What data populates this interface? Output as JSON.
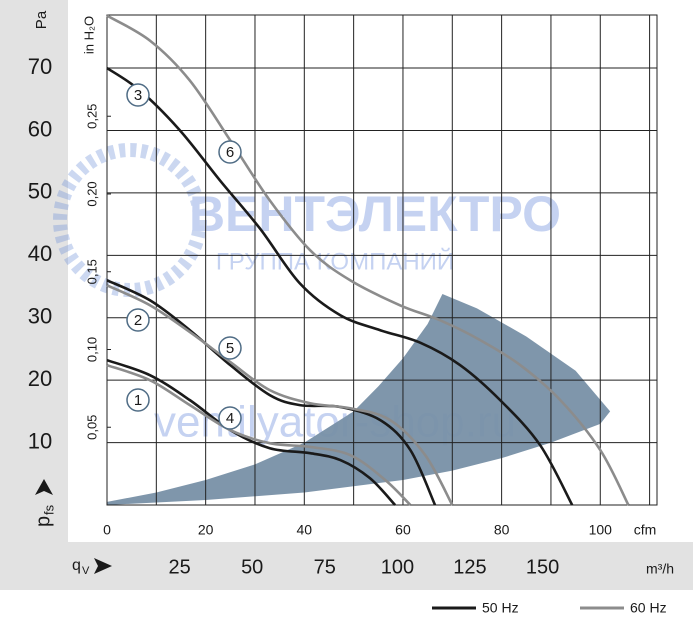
{
  "chart_data": {
    "type": "line",
    "y_axis_unit": "Pa",
    "y2_axis_unit": "in H₂O",
    "x_axis_unit": "cfm",
    "x2_axis_unit": "m³/h",
    "y_symbol": {
      "main": "p",
      "sub": "fs"
    },
    "x_symbol": {
      "main": "q",
      "sub": "V"
    },
    "xlim": [
      0,
      111.5
    ],
    "xticks": [
      0,
      20,
      40,
      60,
      80,
      100
    ],
    "xminor": [
      10,
      30,
      50,
      70,
      90,
      110
    ],
    "ylim": [
      0,
      78.5
    ],
    "yticks": [
      10,
      20,
      30,
      40,
      50,
      60,
      70
    ],
    "y2lim": [
      0,
      0.3151
    ],
    "y2ticks": [
      {
        "value": 0.05,
        "label": "0,05"
      },
      {
        "value": 0.1,
        "label": "0,10"
      },
      {
        "value": 0.15,
        "label": "0,15"
      },
      {
        "value": 0.2,
        "label": "0,20"
      },
      {
        "value": 0.25,
        "label": "0,25"
      }
    ],
    "x2lim": [
      0,
      189.4
    ],
    "x2ticks": [
      25,
      50,
      75,
      100,
      125,
      150
    ],
    "grid": true,
    "legend": [
      {
        "label": "50 Hz",
        "color": "#1a1a1a"
      },
      {
        "label": "60 Hz",
        "color": "#8c8c8c"
      }
    ],
    "region": {
      "color": "#7890a6",
      "x": [
        0,
        10,
        20,
        30,
        40,
        50,
        55,
        60,
        65,
        68,
        75,
        85,
        95,
        102,
        100,
        90,
        80,
        70,
        60,
        40,
        20,
        0
      ],
      "values": [
        0.5,
        2,
        4,
        6.5,
        10,
        15,
        19,
        23.5,
        29,
        33.8,
        31.5,
        27,
        21.5,
        15,
        13,
        10,
        7.5,
        5.5,
        4,
        2,
        0.8,
        0
      ]
    },
    "series": [
      {
        "name": "1",
        "color": "#1a1a1a",
        "x": [
          0,
          8.7,
          16.8,
          25,
          33,
          41.2,
          47.3,
          53.3,
          58.4
        ],
        "values": [
          23.2,
          20.8,
          16.8,
          12,
          9.1,
          8.3,
          7.2,
          4.3,
          0
        ]
      },
      {
        "name": "2",
        "color": "#1a1a1a",
        "x": [
          0,
          8.7,
          16.8,
          25,
          33,
          39.1,
          47.3,
          55.4,
          61.5,
          66.5
        ],
        "values": [
          36,
          32.8,
          28,
          22.4,
          17.6,
          16,
          15.7,
          13.6,
          8.8,
          0
        ]
      },
      {
        "name": "3",
        "color": "#1a1a1a",
        "x": [
          0,
          6.7,
          14.8,
          22.9,
          31,
          39.1,
          47.3,
          55.4,
          63.5,
          71.6,
          79.7,
          87.8,
          94.3
        ],
        "values": [
          70,
          66.4,
          60,
          52,
          44.3,
          35.5,
          30.4,
          28,
          26,
          22.4,
          16.8,
          9.6,
          0
        ]
      },
      {
        "name": "4",
        "color": "#8c8c8c",
        "x": [
          0,
          8.7,
          16.8,
          25,
          33,
          41.2,
          49.3,
          56.4,
          61.5
        ],
        "values": [
          22.4,
          20,
          16,
          12,
          9.9,
          9.3,
          8,
          4,
          0
        ]
      },
      {
        "name": "5",
        "color": "#8c8c8c",
        "x": [
          0,
          8.7,
          16.8,
          25,
          33,
          41.2,
          49.3,
          57.4,
          64.5,
          70
        ],
        "values": [
          35.2,
          32,
          27.7,
          22.9,
          18.4,
          16.3,
          15.5,
          13.6,
          8,
          0
        ]
      },
      {
        "name": "6",
        "color": "#8c8c8c",
        "x": [
          0,
          8.7,
          16.8,
          25,
          33,
          41.2,
          49.3,
          59.4,
          67.5,
          75.7,
          83.8,
          91.9,
          100,
          105.7
        ],
        "values": [
          78.4,
          74.4,
          68,
          58.4,
          48.8,
          40.8,
          36,
          32,
          29.6,
          26.4,
          22.4,
          16.8,
          8.8,
          0
        ]
      }
    ],
    "watermark": {
      "brand": "ВЕНТЭЛЕКТРО",
      "subtitle": "ГРУППА КОМПАНИЙ",
      "site": "ventilyator-shop.ru"
    }
  }
}
